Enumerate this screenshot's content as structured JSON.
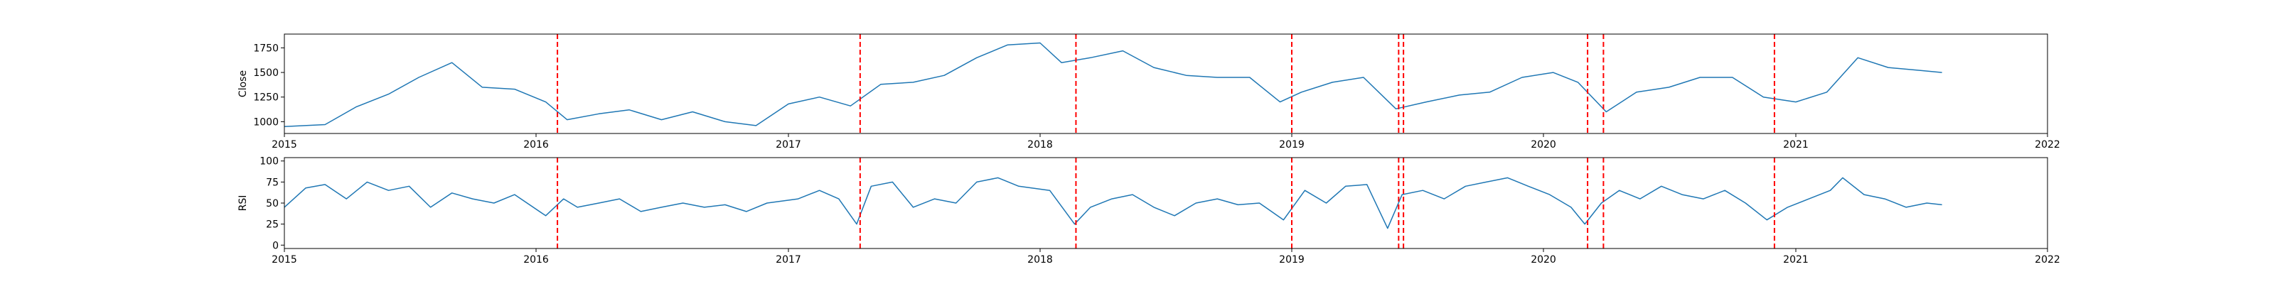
{
  "colors": {
    "line": "#1f77b4",
    "event_line": "#ff0000",
    "axis": "#000000",
    "background": "#ffffff"
  },
  "chart_data": [
    {
      "type": "line",
      "title": "",
      "xlabel": "",
      "ylabel": "Close",
      "grid": false,
      "legend": "none",
      "xlim": [
        "2015-01-01",
        "2022-01-01"
      ],
      "ylim": [
        880,
        1890
      ],
      "x_ticks": [
        "2015",
        "2016",
        "2017",
        "2018",
        "2019",
        "2020",
        "2021",
        "2022"
      ],
      "y_ticks": [
        1000,
        1250,
        1500,
        1750
      ],
      "series": [
        {
          "name": "",
          "x": [
            "2015-01-01",
            "2015-03-01",
            "2015-04-15",
            "2015-06-01",
            "2015-07-15",
            "2015-09-01",
            "2015-10-15",
            "2015-12-01",
            "2016-01-15",
            "2016-02-15",
            "2016-04-01",
            "2016-05-15",
            "2016-07-01",
            "2016-08-15",
            "2016-10-01",
            "2016-11-15",
            "2017-01-01",
            "2017-02-15",
            "2017-04-01",
            "2017-05-15",
            "2017-07-01",
            "2017-08-15",
            "2017-10-01",
            "2017-11-15",
            "2018-01-01",
            "2018-02-01",
            "2018-03-15",
            "2018-05-01",
            "2018-06-15",
            "2018-08-01",
            "2018-09-15",
            "2018-11-01",
            "2018-12-15",
            "2019-01-15",
            "2019-03-01",
            "2019-04-15",
            "2019-06-01",
            "2019-07-15",
            "2019-09-01",
            "2019-10-15",
            "2019-12-01",
            "2020-01-15",
            "2020-02-20",
            "2020-04-01",
            "2020-05-15",
            "2020-07-01",
            "2020-08-15",
            "2020-10-01",
            "2020-11-15",
            "2021-01-01",
            "2021-02-15",
            "2021-04-01",
            "2021-05-15",
            "2021-07-01",
            "2021-08-01"
          ],
          "y": [
            950,
            970,
            1150,
            1280,
            1450,
            1600,
            1350,
            1330,
            1200,
            1020,
            1080,
            1120,
            1020,
            1100,
            1000,
            960,
            1180,
            1250,
            1160,
            1380,
            1400,
            1470,
            1650,
            1780,
            1800,
            1600,
            1650,
            1720,
            1550,
            1470,
            1450,
            1450,
            1200,
            1300,
            1400,
            1450,
            1130,
            1200,
            1270,
            1300,
            1450,
            1500,
            1400,
            1100,
            1300,
            1350,
            1450,
            1450,
            1250,
            1200,
            1300,
            1650,
            1550,
            1520,
            1500
          ]
        }
      ]
    },
    {
      "type": "line",
      "title": "",
      "xlabel": "",
      "ylabel": "RSI",
      "grid": false,
      "legend": "none",
      "xlim": [
        "2015-01-01",
        "2022-01-01"
      ],
      "ylim": [
        -4,
        104
      ],
      "x_ticks": [
        "2015",
        "2016",
        "2017",
        "2018",
        "2019",
        "2020",
        "2021",
        "2022"
      ],
      "y_ticks": [
        0,
        25,
        50,
        75,
        100
      ],
      "series": [
        {
          "name": "",
          "x": [
            "2015-01-01",
            "2015-02-01",
            "2015-03-01",
            "2015-04-01",
            "2015-05-01",
            "2015-06-01",
            "2015-07-01",
            "2015-08-01",
            "2015-09-01",
            "2015-10-01",
            "2015-11-01",
            "2015-12-01",
            "2016-01-15",
            "2016-02-10",
            "2016-03-01",
            "2016-04-01",
            "2016-05-01",
            "2016-06-01",
            "2016-07-01",
            "2016-08-01",
            "2016-09-01",
            "2016-10-01",
            "2016-11-01",
            "2016-12-01",
            "2017-01-15",
            "2017-02-15",
            "2017-03-15",
            "2017-04-10",
            "2017-05-01",
            "2017-06-01",
            "2017-07-01",
            "2017-08-01",
            "2017-09-01",
            "2017-10-01",
            "2017-11-01",
            "2017-12-01",
            "2018-01-15",
            "2018-02-20",
            "2018-03-15",
            "2018-04-15",
            "2018-05-15",
            "2018-06-15",
            "2018-07-15",
            "2018-08-15",
            "2018-09-15",
            "2018-10-15",
            "2018-11-15",
            "2018-12-20",
            "2019-01-20",
            "2019-02-20",
            "2019-03-20",
            "2019-04-20",
            "2019-05-20",
            "2019-06-10",
            "2019-07-10",
            "2019-08-10",
            "2019-09-10",
            "2019-10-10",
            "2019-11-10",
            "2019-12-10",
            "2020-01-10",
            "2020-02-10",
            "2020-03-01",
            "2020-03-25",
            "2020-04-20",
            "2020-05-20",
            "2020-06-20",
            "2020-07-20",
            "2020-08-20",
            "2020-09-20",
            "2020-10-20",
            "2020-11-20",
            "2020-12-20",
            "2021-01-20",
            "2021-02-20",
            "2021-03-10",
            "2021-04-10",
            "2021-05-10",
            "2021-06-10",
            "2021-07-10",
            "2021-08-01"
          ],
          "y": [
            45,
            68,
            72,
            55,
            75,
            65,
            70,
            45,
            62,
            55,
            50,
            60,
            35,
            55,
            45,
            50,
            55,
            40,
            45,
            50,
            45,
            48,
            40,
            50,
            55,
            65,
            55,
            25,
            70,
            75,
            45,
            55,
            50,
            75,
            80,
            70,
            65,
            25,
            45,
            55,
            60,
            45,
            35,
            50,
            55,
            48,
            50,
            30,
            65,
            50,
            70,
            72,
            20,
            60,
            65,
            55,
            70,
            75,
            80,
            70,
            60,
            45,
            25,
            50,
            65,
            55,
            70,
            60,
            55,
            65,
            50,
            30,
            45,
            55,
            65,
            80,
            60,
            55,
            45,
            50,
            48
          ]
        }
      ]
    }
  ],
  "event_lines": [
    "2016-02-01",
    "2017-04-15",
    "2018-02-22",
    "2019-01-01",
    "2019-06-05",
    "2019-06-12",
    "2020-03-05",
    "2020-03-28",
    "2020-12-01"
  ]
}
